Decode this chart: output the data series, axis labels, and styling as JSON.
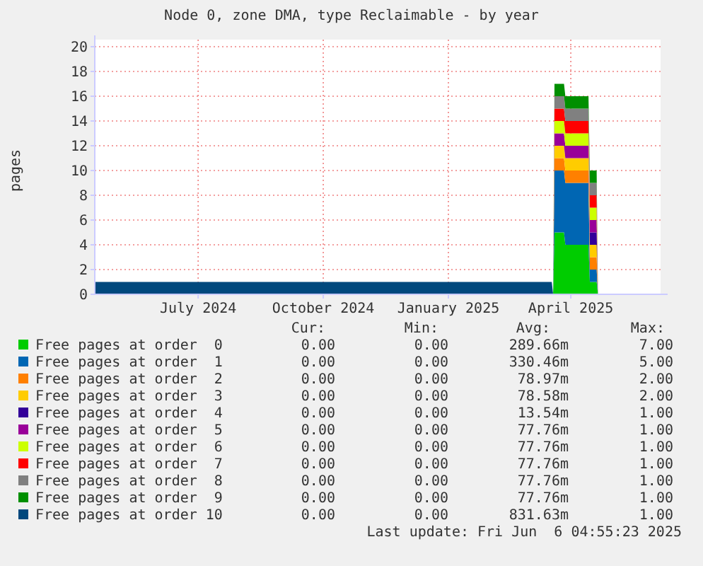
{
  "chart_data": {
    "type": "area",
    "title": "Node 0, zone DMA, type Reclaimable - by year",
    "ylabel": "pages",
    "stacked": true,
    "grid": true,
    "legend": "bottom",
    "x": [
      "2024-04-16",
      "2025-03-18",
      "2025-03-19",
      "2025-03-20",
      "2025-03-27",
      "2025-03-28",
      "2025-04-14",
      "2025-04-15",
      "2025-04-20",
      "2025-04-21"
    ],
    "xlim": [
      "2024-04-16",
      "2025-06-06"
    ],
    "xticks": [
      {
        "value": "2024-07-01",
        "label": "July 2024"
      },
      {
        "value": "2024-10-01",
        "label": "October 2024"
      },
      {
        "value": "2025-01-01",
        "label": "January 2025"
      },
      {
        "value": "2025-04-01",
        "label": "April 2025"
      }
    ],
    "ylim": [
      0,
      20
    ],
    "yticks": [
      0,
      2,
      4,
      6,
      8,
      10,
      12,
      14,
      16,
      18,
      20
    ],
    "series": [
      {
        "name": "Free pages at order  0",
        "color": "#00cc00",
        "values": [
          0,
          0,
          0,
          5,
          5,
          4,
          4,
          1,
          1,
          0
        ]
      },
      {
        "name": "Free pages at order  1",
        "color": "#0066b3",
        "values": [
          0,
          0,
          0,
          5,
          5,
          5,
          5,
          1,
          1,
          0
        ]
      },
      {
        "name": "Free pages at order  2",
        "color": "#ff8000",
        "values": [
          0,
          0,
          0,
          1,
          1,
          1,
          1,
          1,
          1,
          0
        ]
      },
      {
        "name": "Free pages at order  3",
        "color": "#ffcc00",
        "values": [
          0,
          0,
          0,
          1,
          1,
          1,
          1,
          1,
          1,
          0
        ]
      },
      {
        "name": "Free pages at order  4",
        "color": "#330099",
        "values": [
          null,
          null,
          null,
          null,
          null,
          null,
          0,
          1,
          1,
          0
        ]
      },
      {
        "name": "Free pages at order  5",
        "color": "#990099",
        "values": [
          0,
          0,
          0,
          1,
          1,
          1,
          1,
          1,
          1,
          0
        ]
      },
      {
        "name": "Free pages at order  6",
        "color": "#ccff00",
        "values": [
          0,
          0,
          0,
          1,
          1,
          1,
          1,
          1,
          1,
          0
        ]
      },
      {
        "name": "Free pages at order  7",
        "color": "#ff0000",
        "values": [
          0,
          0,
          0,
          1,
          1,
          1,
          1,
          1,
          1,
          0
        ]
      },
      {
        "name": "Free pages at order  8",
        "color": "#808080",
        "values": [
          0,
          0,
          0,
          1,
          1,
          1,
          1,
          1,
          1,
          0
        ]
      },
      {
        "name": "Free pages at order  9",
        "color": "#008f00",
        "values": [
          0,
          0,
          0,
          1,
          1,
          1,
          1,
          1,
          1,
          0
        ]
      },
      {
        "name": "Free pages at order 10",
        "color": "#00487d",
        "values": [
          1,
          1,
          0,
          null,
          null,
          null,
          null,
          null,
          null,
          null
        ]
      }
    ],
    "annotations": [
      "Cur:",
      "Min:",
      "Avg:",
      "Max:",
      "0.00",
      "0.00",
      "289.66m",
      "7.00",
      "0.00",
      "0.00",
      "330.46m",
      "5.00",
      "0.00",
      "0.00",
      "78.97m",
      "2.00",
      "0.00",
      "0.00",
      "78.58m",
      "2.00",
      "0.00",
      "0.00",
      "13.54m",
      "1.00",
      "0.00",
      "0.00",
      "77.76m",
      "1.00",
      "0.00",
      "0.00",
      "77.76m",
      "1.00",
      "0.00",
      "0.00",
      "77.76m",
      "1.00",
      "0.00",
      "0.00",
      "77.76m",
      "1.00",
      "0.00",
      "0.00",
      "77.76m",
      "1.00",
      "0.00",
      "0.00",
      "831.63m",
      "1.00",
      "Last update: Fri Jun  6 04:55:23 2025"
    ]
  }
}
